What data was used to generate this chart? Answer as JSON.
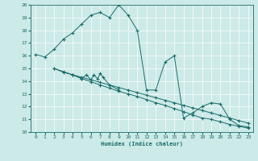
{
  "xlabel": "Humidex (Indice chaleur)",
  "bg_color": "#cceae7",
  "line_color": "#1a6b6b",
  "grid_color": "#b0d8d4",
  "xlim": [
    -0.5,
    23.5
  ],
  "ylim": [
    10,
    20
  ],
  "xticks": [
    0,
    1,
    2,
    3,
    4,
    5,
    6,
    7,
    8,
    9,
    10,
    11,
    12,
    13,
    14,
    15,
    16,
    17,
    18,
    19,
    20,
    21,
    22,
    23
  ],
  "yticks": [
    10,
    11,
    12,
    13,
    14,
    15,
    16,
    17,
    18,
    19,
    20
  ],
  "s1": [
    [
      0,
      16.1
    ],
    [
      1,
      15.9
    ],
    [
      2,
      16.5
    ],
    [
      3,
      17.3
    ],
    [
      4,
      17.8
    ],
    [
      5,
      18.5
    ],
    [
      6,
      19.2
    ],
    [
      7,
      19.4
    ],
    [
      8,
      19.0
    ],
    [
      9,
      20.0
    ],
    [
      10,
      19.2
    ],
    [
      11,
      18.0
    ],
    [
      12,
      13.3
    ],
    [
      13,
      13.3
    ],
    [
      14,
      15.5
    ],
    [
      15,
      16.0
    ],
    [
      16,
      11.1
    ],
    [
      17,
      11.5
    ],
    [
      18,
      12.0
    ],
    [
      19,
      12.3
    ],
    [
      20,
      12.2
    ],
    [
      21,
      11.0
    ],
    [
      22,
      10.5
    ],
    [
      23,
      10.4
    ]
  ],
  "s2": [
    [
      2,
      15.0
    ],
    [
      3,
      14.7
    ],
    [
      4,
      14.5
    ],
    [
      5,
      14.2
    ],
    [
      6,
      13.95
    ],
    [
      7,
      13.7
    ],
    [
      8,
      13.45
    ],
    [
      9,
      13.2
    ],
    [
      10,
      13.0
    ],
    [
      11,
      12.8
    ],
    [
      12,
      12.55
    ],
    [
      13,
      12.3
    ],
    [
      14,
      12.1
    ],
    [
      15,
      11.85
    ],
    [
      16,
      11.6
    ],
    [
      17,
      11.35
    ],
    [
      18,
      11.1
    ],
    [
      19,
      11.0
    ],
    [
      20,
      10.8
    ],
    [
      21,
      10.6
    ],
    [
      22,
      10.45
    ],
    [
      23,
      10.3
    ]
  ],
  "s3": [
    [
      2,
      15.0
    ],
    [
      3,
      14.75
    ],
    [
      4,
      14.5
    ],
    [
      5,
      14.3
    ],
    [
      6,
      14.1
    ],
    [
      7,
      13.9
    ],
    [
      8,
      13.7
    ],
    [
      9,
      13.5
    ],
    [
      10,
      13.3
    ],
    [
      11,
      13.1
    ],
    [
      12,
      12.9
    ],
    [
      13,
      12.7
    ],
    [
      14,
      12.5
    ],
    [
      15,
      12.3
    ],
    [
      16,
      12.1
    ],
    [
      17,
      11.9
    ],
    [
      18,
      11.7
    ],
    [
      19,
      11.5
    ],
    [
      20,
      11.3
    ],
    [
      21,
      11.1
    ],
    [
      22,
      10.9
    ],
    [
      23,
      10.7
    ]
  ],
  "s4": [
    [
      4,
      14.5
    ],
    [
      5,
      14.2
    ],
    [
      5.5,
      14.5
    ],
    [
      6,
      14.1
    ],
    [
      6.3,
      14.5
    ],
    [
      6.7,
      14.2
    ],
    [
      7,
      14.6
    ],
    [
      7.3,
      14.3
    ],
    [
      8,
      13.7
    ],
    [
      9,
      13.3
    ]
  ]
}
